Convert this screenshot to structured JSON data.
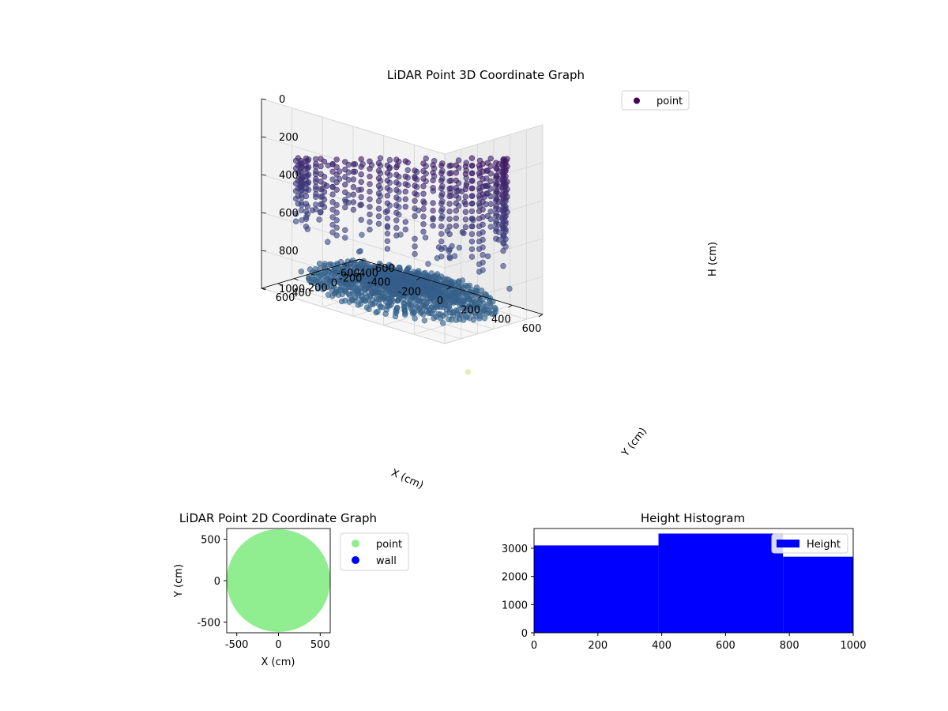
{
  "chart_data": [
    {
      "type": "scatter3d",
      "title": "LiDAR Point 3D Coordinate Graph",
      "xlabel": "X (cm)",
      "ylabel": "Y (cm)",
      "zlabel": "H (cm)",
      "xlim": [
        -600,
        600
      ],
      "ylim": [
        -600,
        600
      ],
      "zlim": [
        0,
        1000
      ],
      "z_axis_inverted": true,
      "x_ticks": [
        -600,
        -400,
        -200,
        0,
        200,
        400,
        600
      ],
      "y_ticks": [
        -600,
        -400,
        -200,
        0,
        200,
        400,
        600
      ],
      "z_ticks": [
        0,
        200,
        400,
        600,
        800,
        1000
      ],
      "grid": true,
      "legend": {
        "position": "upper right",
        "entries": [
          {
            "label": "point",
            "color": "#440154"
          }
        ]
      },
      "colormap": "viridis",
      "floor_projection_color": "#d8ef9a",
      "features": [
        {
          "kind": "ring_wall",
          "cx": 0,
          "cy": 0,
          "r": 600,
          "h_top": 0,
          "h_bottom": 600
        },
        {
          "kind": "rays",
          "cx": 0,
          "cy": 0,
          "r_inner": 60,
          "r_outer": 560,
          "h_near": 900,
          "h_far": 950
        },
        {
          "kind": "cluster",
          "x": 50,
          "y": 200,
          "h": 100
        }
      ]
    },
    {
      "type": "scatter",
      "title": "LiDAR Point 2D Coordinate Graph",
      "xlabel": "X (cm)",
      "ylabel": "Y (cm)",
      "xlim": [
        -620,
        620
      ],
      "ylim": [
        -630,
        630
      ],
      "x_ticks": [
        -500,
        0,
        500
      ],
      "y_ticks": [
        -500,
        0,
        500
      ],
      "series": [
        {
          "name": "point",
          "color": "#90ee90",
          "region": "disk",
          "cx": 0,
          "cy": 0,
          "r": 620
        },
        {
          "name": "wall",
          "color": "#0000ff",
          "points": []
        }
      ],
      "legend": "outside right"
    },
    {
      "type": "bar",
      "title": "Height Histogram",
      "xlim": [
        0,
        1000
      ],
      "ylim": [
        0,
        3700
      ],
      "x_ticks": [
        0,
        200,
        400,
        600,
        800,
        1000
      ],
      "y_ticks": [
        0,
        1000,
        2000,
        3000
      ],
      "bins": [
        {
          "from": 0,
          "to": 390,
          "count": 3100
        },
        {
          "from": 390,
          "to": 780,
          "count": 3520
        },
        {
          "from": 780,
          "to": 1000,
          "count": 2700
        }
      ],
      "color": "#0000ff",
      "legend": {
        "position": "upper right",
        "entries": [
          {
            "label": "Height",
            "color": "#0000ff"
          }
        ]
      }
    }
  ]
}
